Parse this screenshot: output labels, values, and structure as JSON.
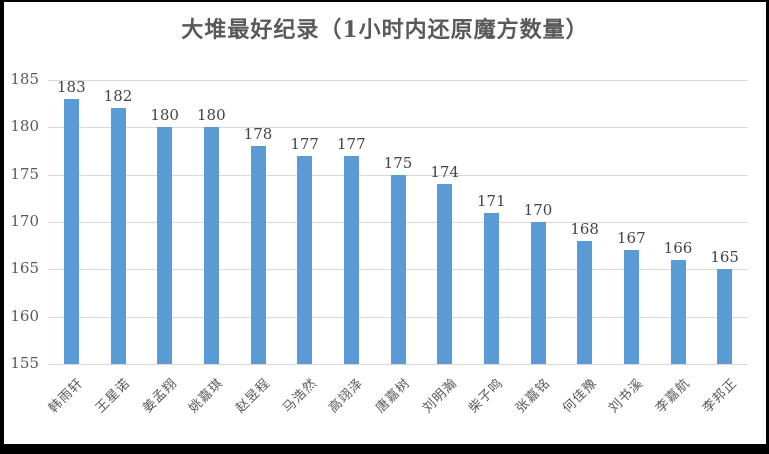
{
  "figure": {
    "background": "#FFFFFF",
    "frame_color": "#000000"
  },
  "chart_data": {
    "type": "bar",
    "title": "大堆最好纪录（1小时内还原魔方数量）",
    "categories": [
      "韩雨轩",
      "王星诺",
      "姜孟翔",
      "姚嘉琪",
      "赵昱程",
      "马浩然",
      "高翊泽",
      "唐嘉树",
      "刘明瀚",
      "柴子鸣",
      "张嘉铭",
      "何佳豫",
      "刘书溪",
      "李嘉航",
      "李邦正"
    ],
    "values": [
      183,
      182,
      180,
      180,
      178,
      177,
      177,
      175,
      174,
      171,
      170,
      168,
      167,
      166,
      165
    ],
    "xlabel": "",
    "ylabel": "",
    "ylim": [
      155,
      185
    ],
    "yticks": [
      155,
      160,
      165,
      170,
      175,
      180,
      185
    ],
    "grid": true,
    "legend": false,
    "data_labels": true,
    "x_label_rotation_deg": 45,
    "bar_color": "#5B9BD5",
    "gridline_color": "#D9D9D9",
    "title_color": "#595959",
    "axis_label_color": "#595959",
    "data_label_color": "#444444"
  }
}
